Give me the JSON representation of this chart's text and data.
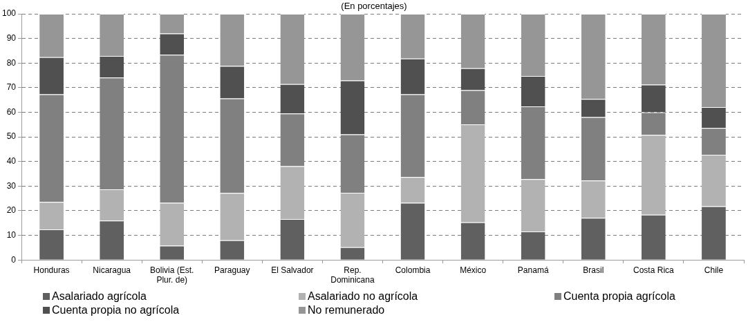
{
  "chart_data": {
    "type": "bar",
    "stacked": true,
    "title": "(En porcentajes)",
    "categories": [
      "Honduras",
      "Nicaragua",
      "Bolivia (Est. Plur. de)",
      "Paraguay",
      "El Salvador",
      "Rep. Dominicana",
      "Colombia",
      "México",
      "Panamá",
      "Brasil",
      "Costa Rica",
      "Chile"
    ],
    "series": [
      {
        "name": "Asalariado agrícola",
        "color": "#606060",
        "values": [
          12.4,
          16.0,
          5.8,
          8.0,
          16.6,
          5.2,
          23.2,
          15.3,
          11.6,
          17.1,
          18.4,
          21.8
        ]
      },
      {
        "name": "Asalariado no agrícola",
        "color": "#b2b2b2",
        "values": [
          11.2,
          12.7,
          17.4,
          19.2,
          21.5,
          22.1,
          10.5,
          39.8,
          21.2,
          15.2,
          32.4,
          20.9
        ]
      },
      {
        "name": "Cuenta propia agrícola",
        "color": "#808080",
        "values": [
          43.7,
          45.4,
          60.2,
          38.4,
          21.4,
          23.7,
          33.6,
          13.9,
          29.6,
          25.7,
          9.2,
          10.9
        ]
      },
      {
        "name": "Cuenta propia no agrícola",
        "color": "#505050",
        "values": [
          15.1,
          8.8,
          8.6,
          13.2,
          11.9,
          21.9,
          14.5,
          8.9,
          12.3,
          7.4,
          11.2,
          8.5
        ]
      },
      {
        "name": "No remunerado",
        "color": "#969696",
        "values": [
          17.6,
          17.1,
          8.0,
          21.2,
          28.6,
          27.1,
          18.2,
          22.1,
          25.3,
          34.6,
          28.8,
          37.9
        ]
      }
    ],
    "ylim": [
      0,
      100
    ],
    "yticks": [
      0,
      10,
      20,
      30,
      40,
      50,
      60,
      70,
      80,
      90,
      100
    ],
    "grid": "y",
    "legend": "bottom"
  }
}
